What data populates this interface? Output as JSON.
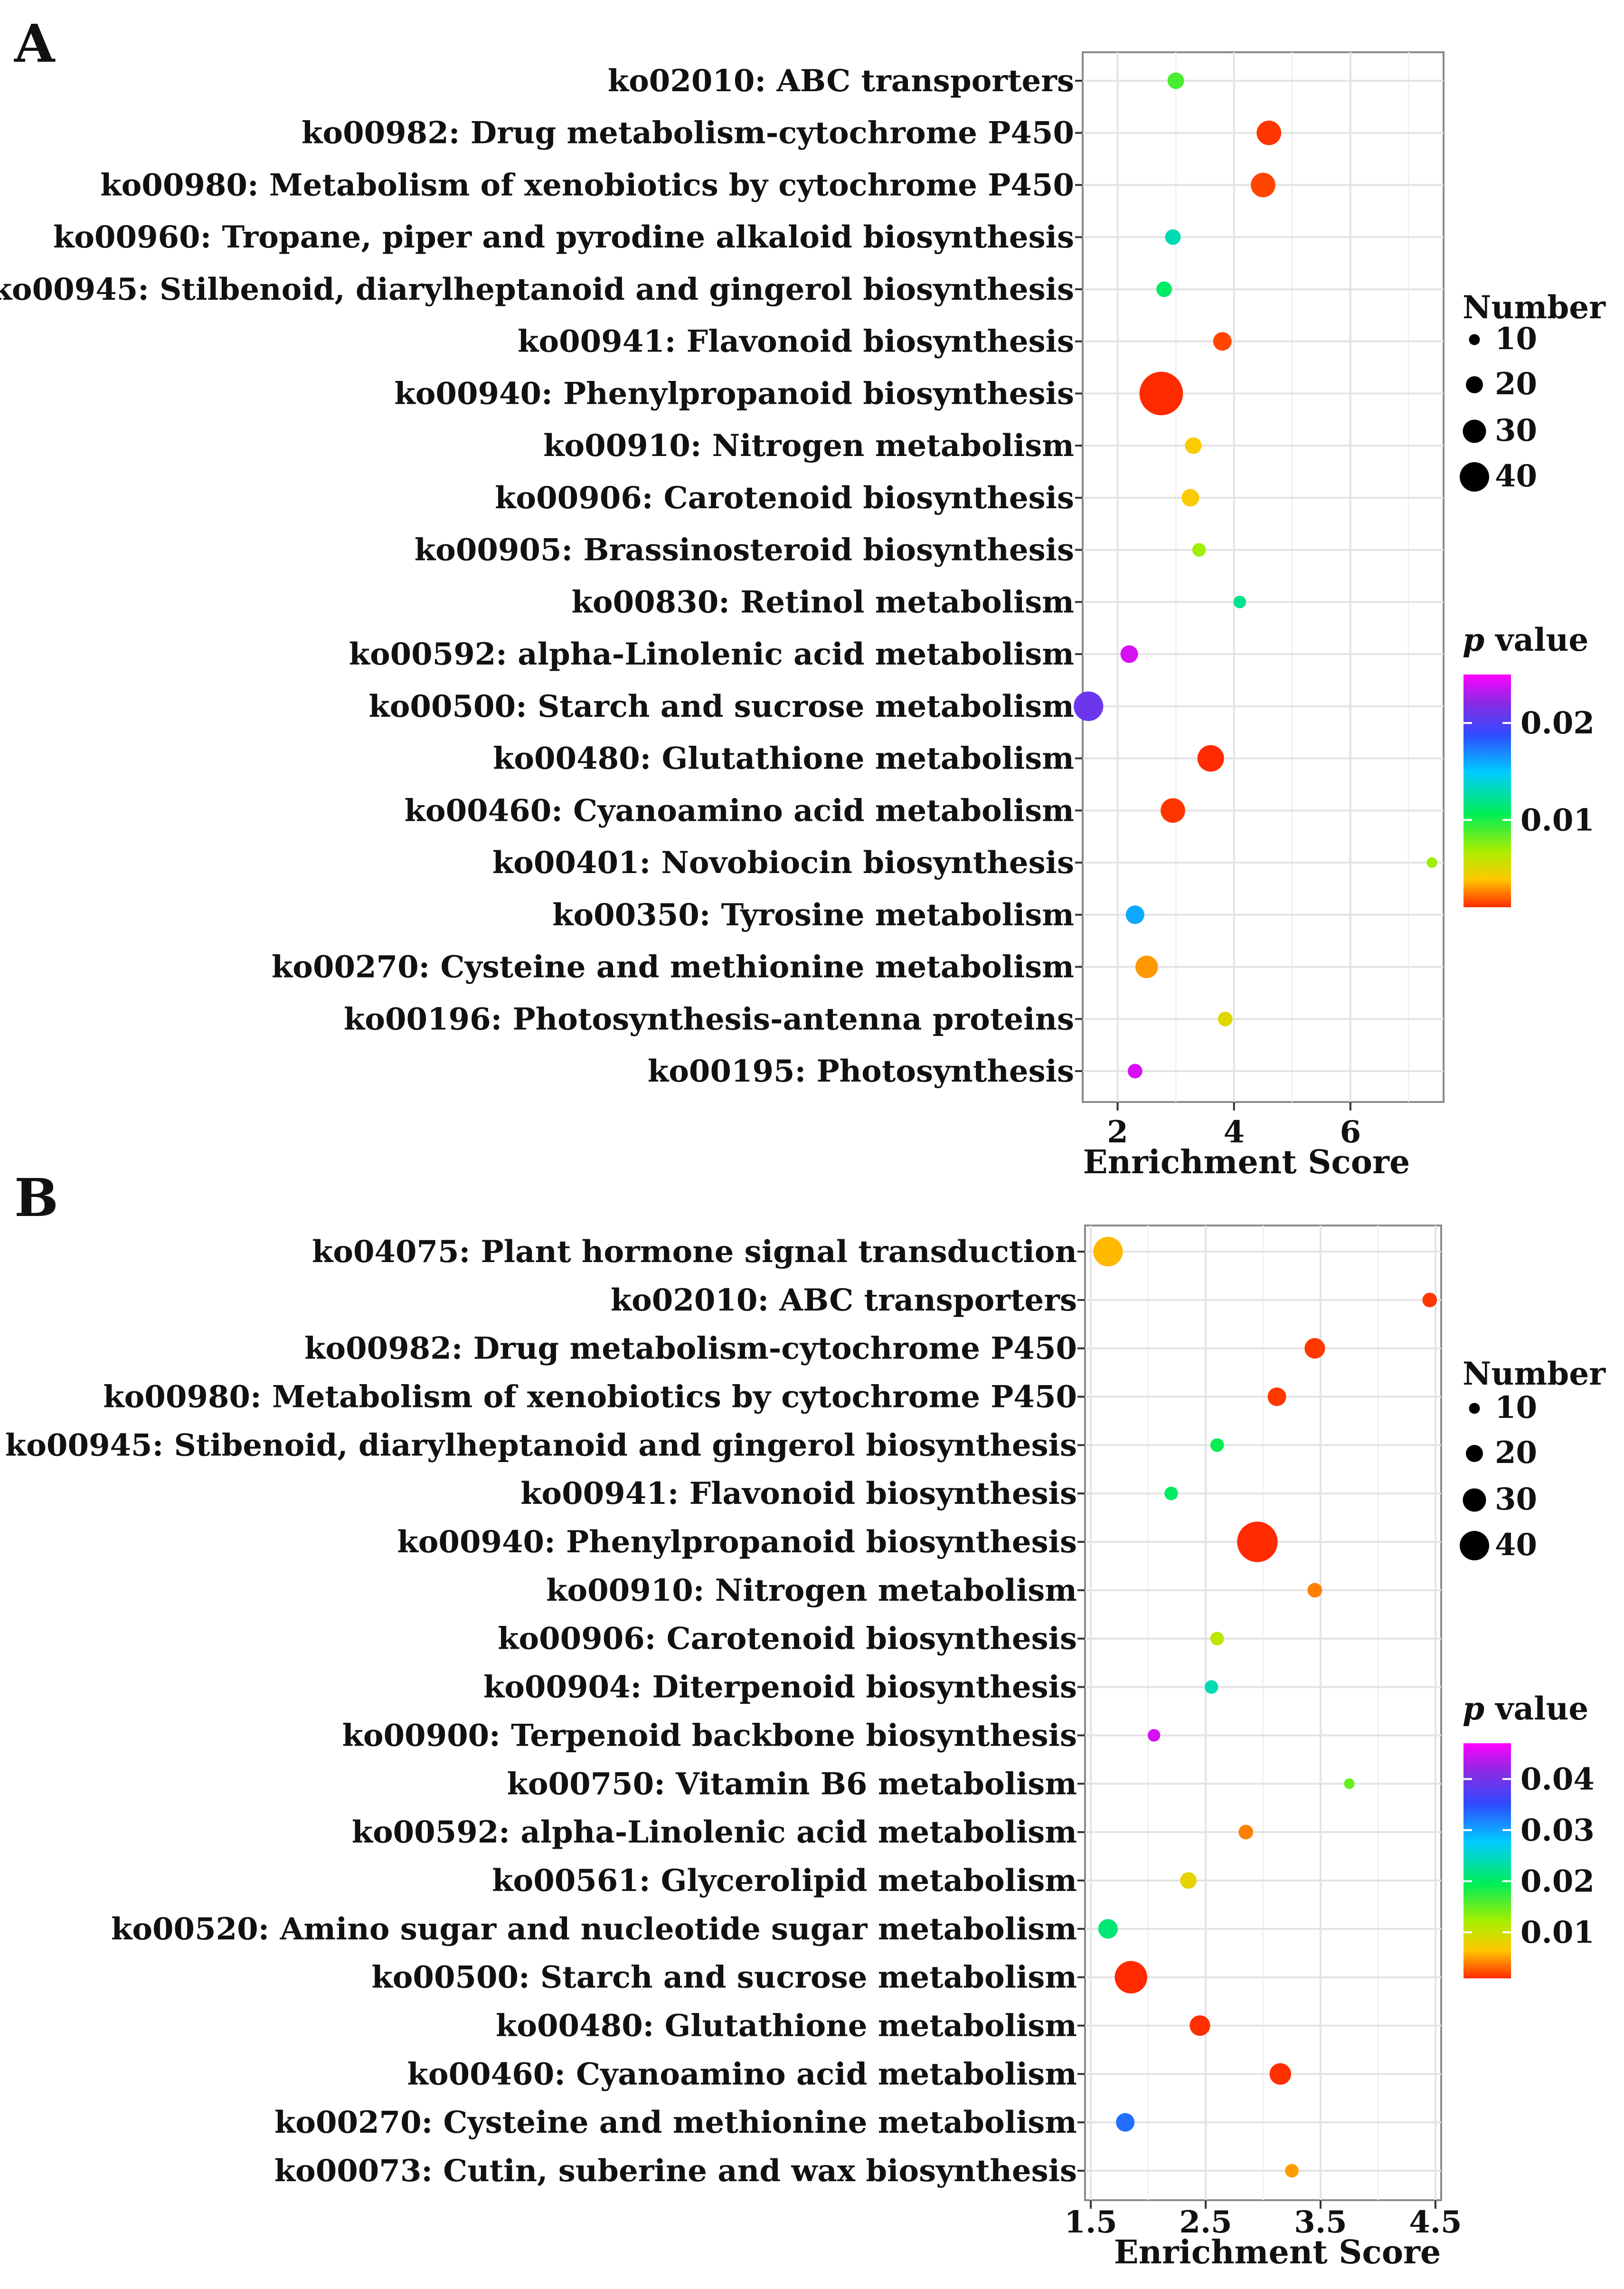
{
  "chart_data": [
    {
      "panel_label": "A",
      "type": "scatter",
      "xlabel": "Enrichment Score",
      "ylabel": "",
      "xlim": [
        1.4,
        7.6
      ],
      "xticks": [
        2,
        4,
        6
      ],
      "grid": true,
      "legend": {
        "placement": "right",
        "size_title": "Number",
        "size_values": [
          10,
          20,
          30,
          40
        ],
        "color_title_italic": "p",
        "color_title_rest": " value",
        "color_ticks": [
          0.02,
          0.01
        ],
        "color_tick_labels": [
          "0.02",
          "0.01"
        ],
        "color_range": [
          0.001,
          0.025
        ]
      },
      "points": [
        {
          "term": "ko02010: ABC transporters",
          "x": 3.0,
          "number": 9,
          "p": 0.009
        },
        {
          "term": "ko00982: Drug metabolism-cytochrome P450",
          "x": 4.6,
          "number": 17,
          "p": 0.0012
        },
        {
          "term": "ko00980: Metabolism of xenobiotics by cytochrome P450",
          "x": 4.5,
          "number": 17,
          "p": 0.0015
        },
        {
          "term": "ko00960: Tropane, piper and pyrodine alkaloid biosynthesis",
          "x": 2.95,
          "number": 8,
          "p": 0.013
        },
        {
          "term": "ko00945: Stilbenoid, diarylheptanoid and gingerol biosynthesis",
          "x": 2.8,
          "number": 8,
          "p": 0.011
        },
        {
          "term": "ko00941: Flavonoid biosynthesis",
          "x": 3.8,
          "number": 11,
          "p": 0.0015
        },
        {
          "term": "ko00940: Phenylpropanoid biosynthesis",
          "x": 2.75,
          "number": 36,
          "p": 0.0008
        },
        {
          "term": "ko00910: Nitrogen metabolism",
          "x": 3.3,
          "number": 9,
          "p": 0.004
        },
        {
          "term": "ko00906: Carotenoid biosynthesis",
          "x": 3.25,
          "number": 10,
          "p": 0.004
        },
        {
          "term": "ko00905: Brassinosteroid biosynthesis",
          "x": 3.4,
          "number": 6,
          "p": 0.007
        },
        {
          "term": "ko00830: Retinol metabolism",
          "x": 4.1,
          "number": 5,
          "p": 0.012
        },
        {
          "term": "ko00592: alpha-Linolenic acid metabolism",
          "x": 2.2,
          "number": 10,
          "p": 0.024
        },
        {
          "term": "ko00500: Starch and sucrose metabolism",
          "x": 1.5,
          "number": 22,
          "p": 0.021
        },
        {
          "term": "ko00480: Glutathione metabolism",
          "x": 3.6,
          "number": 19,
          "p": 0.001
        },
        {
          "term": "ko00460: Cyanoamino acid metabolism",
          "x": 2.95,
          "number": 17,
          "p": 0.0012
        },
        {
          "term": "ko00401: Novobiocin biosynthesis",
          "x": 7.4,
          "number": 3,
          "p": 0.007
        },
        {
          "term": "ko00350: Tyrosine metabolism",
          "x": 2.3,
          "number": 11,
          "p": 0.016
        },
        {
          "term": "ko00270: Cysteine and methionine metabolism",
          "x": 2.5,
          "number": 15,
          "p": 0.003
        },
        {
          "term": "ko00196: Photosynthesis-antenna proteins",
          "x": 3.85,
          "number": 7,
          "p": 0.005
        },
        {
          "term": "ko00195: Photosynthesis",
          "x": 2.3,
          "number": 7,
          "p": 0.024
        }
      ]
    },
    {
      "panel_label": "B",
      "type": "scatter",
      "xlabel": "Enrichment Score",
      "ylabel": "",
      "xlim": [
        1.45,
        4.55
      ],
      "xticks": [
        1.5,
        2.5,
        3.5,
        4.5
      ],
      "grid": true,
      "legend": {
        "placement": "right",
        "size_title": "Number",
        "size_values": [
          10,
          20,
          30,
          40
        ],
        "color_title_italic": "p",
        "color_title_rest": " value",
        "color_ticks": [
          0.04,
          0.03,
          0.02,
          0.01
        ],
        "color_tick_labels": [
          "0.04",
          "0.03",
          "0.02",
          "0.01"
        ],
        "color_range": [
          0.001,
          0.047
        ]
      },
      "points": [
        {
          "term": "ko04075: Plant hormone signal transduction",
          "x": 1.65,
          "number": 22,
          "p": 0.006
        },
        {
          "term": "ko02010: ABC transporters",
          "x": 4.45,
          "number": 7,
          "p": 0.0015
        },
        {
          "term": "ko00982: Drug metabolism-cytochrome P450",
          "x": 3.45,
          "number": 13,
          "p": 0.0015
        },
        {
          "term": "ko00980: Metabolism of xenobiotics by cytochrome P450",
          "x": 3.12,
          "number": 11,
          "p": 0.0015
        },
        {
          "term": "ko00945: Stibenoid, diarylheptanoid and gingerol biosynthesis",
          "x": 2.6,
          "number": 6,
          "p": 0.019
        },
        {
          "term": "ko00941: Flavonoid biosynthesis",
          "x": 2.2,
          "number": 6,
          "p": 0.02
        },
        {
          "term": "ko00940: Phenylpropanoid biosynthesis",
          "x": 2.95,
          "number": 33,
          "p": 0.0008
        },
        {
          "term": "ko00910: Nitrogen metabolism",
          "x": 3.45,
          "number": 7,
          "p": 0.004
        },
        {
          "term": "ko00906: Carotenoid biosynthesis",
          "x": 2.6,
          "number": 6,
          "p": 0.011
        },
        {
          "term": "ko00904: Diterpenoid biosynthesis",
          "x": 2.55,
          "number": 6,
          "p": 0.024
        },
        {
          "term": "ko00900: Terpenoid backbone biosynthesis",
          "x": 2.05,
          "number": 5,
          "p": 0.045
        },
        {
          "term": "ko00750: Vitamin B6 metabolism",
          "x": 3.75,
          "number": 3,
          "p": 0.015
        },
        {
          "term": "ko00592: alpha-Linolenic acid metabolism",
          "x": 2.85,
          "number": 7,
          "p": 0.004
        },
        {
          "term": "ko00561: Glycerolipid metabolism",
          "x": 2.35,
          "number": 9,
          "p": 0.008
        },
        {
          "term": "ko00520: Amino sugar and nucleotide sugar metabolism",
          "x": 1.65,
          "number": 12,
          "p": 0.021
        },
        {
          "term": "ko00500: Starch and sucrose metabolism",
          "x": 1.85,
          "number": 25,
          "p": 0.0008
        },
        {
          "term": "ko00480: Glutathione metabolism",
          "x": 2.45,
          "number": 13,
          "p": 0.0012
        },
        {
          "term": "ko00460: Cyanoamino acid metabolism",
          "x": 3.15,
          "number": 14,
          "p": 0.0012
        },
        {
          "term": "ko00270: Cysteine and methionine metabolism",
          "x": 1.8,
          "number": 11,
          "p": 0.033
        },
        {
          "term": "ko00073: Cutin, suberine and wax biosynthesis",
          "x": 3.25,
          "number": 6,
          "p": 0.005
        }
      ]
    }
  ]
}
